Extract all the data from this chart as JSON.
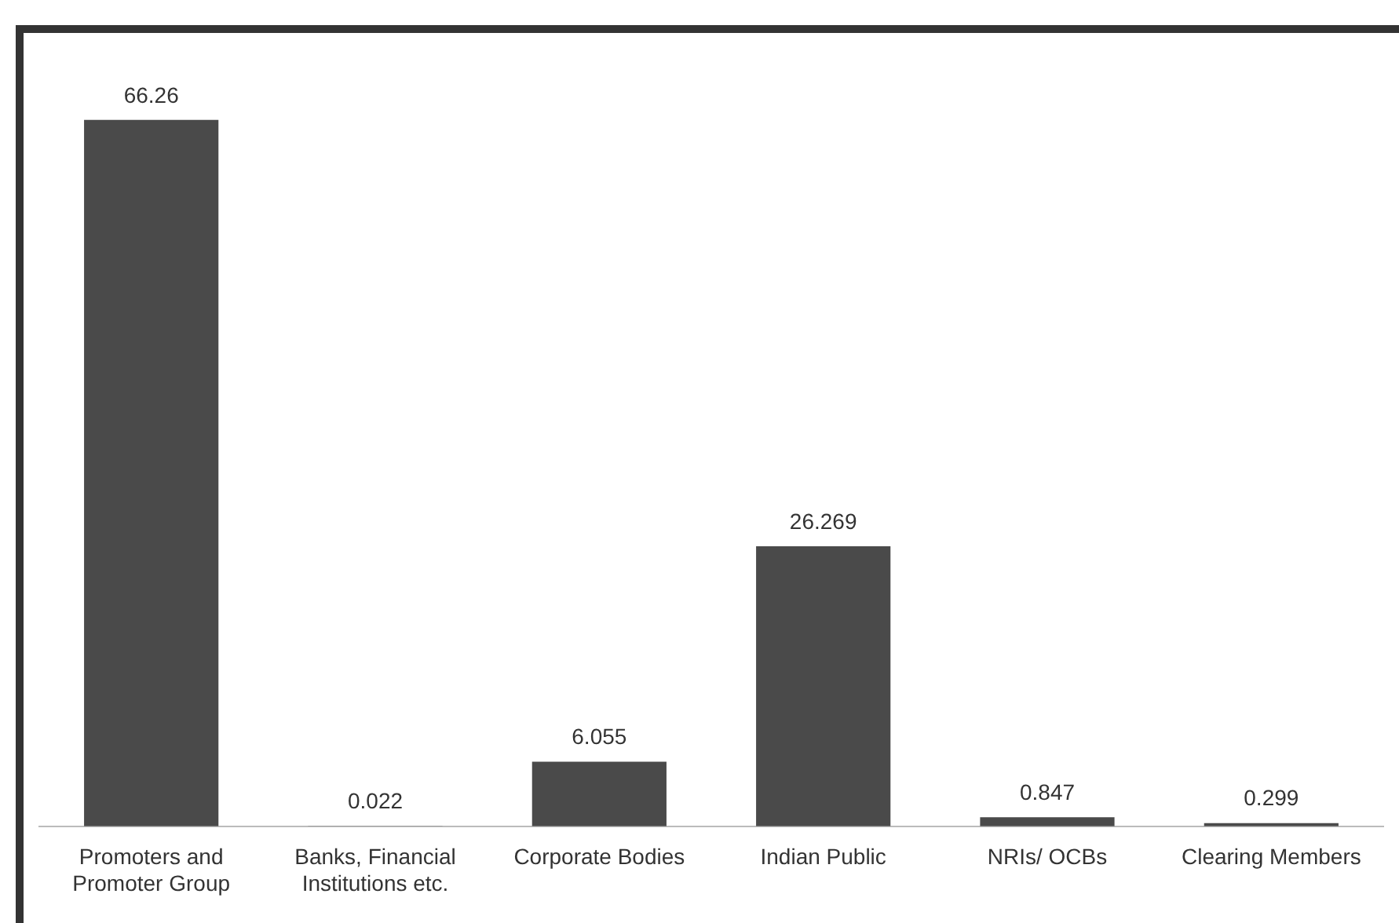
{
  "chart_data": {
    "type": "bar",
    "categories": [
      "Promoters and Promoter Group",
      "Banks, Financial Institutions etc.",
      "Corporate Bodies",
      "Indian Public",
      "NRIs/ OCBs",
      "Clearing Members"
    ],
    "values": [
      66.26,
      0.022,
      6.055,
      26.269,
      0.847,
      0.299
    ],
    "color": "#4a4a4a",
    "data_labels": true,
    "grid": false,
    "legend": false
  }
}
